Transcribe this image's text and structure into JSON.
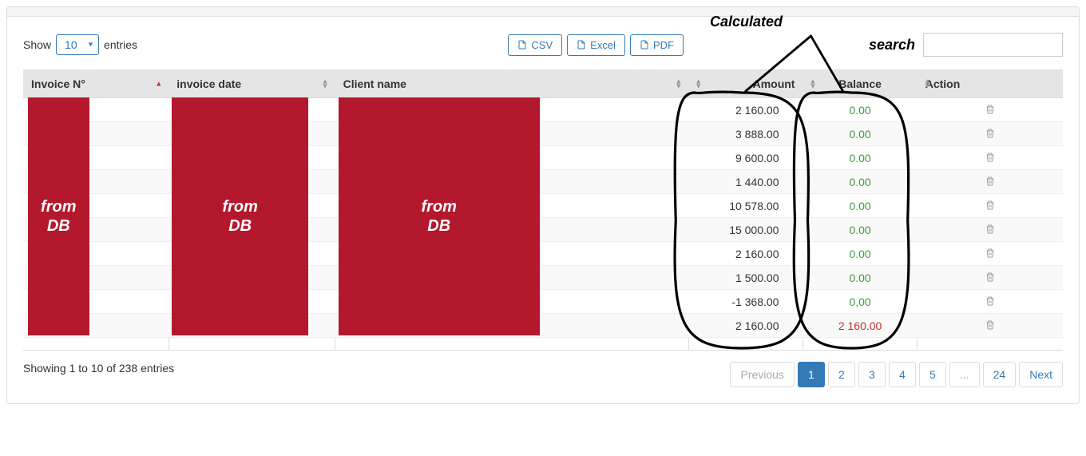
{
  "length": {
    "show_label": "Show",
    "entries_label": "entries",
    "value": "10"
  },
  "export": {
    "csv": "CSV",
    "excel": "Excel",
    "pdf": "PDF"
  },
  "search": {
    "label": "search",
    "value": ""
  },
  "columns": {
    "invoice_no": "Invoice N°",
    "invoice_date": "invoice date",
    "client_name": "Client name",
    "amount": "Amount",
    "balance": "Balance",
    "action": "Action"
  },
  "column_widths": {
    "invoice_no": "14%",
    "invoice_date": "16%",
    "client_name": "34%",
    "amount": "11%",
    "balance": "11%",
    "action": "14%"
  },
  "rows": [
    {
      "amount": "2 160.00",
      "balance": "0.00",
      "balance_color": "green"
    },
    {
      "amount": "3 888.00",
      "balance": "0.00",
      "balance_color": "green"
    },
    {
      "amount": "9 600.00",
      "balance": "0.00",
      "balance_color": "green"
    },
    {
      "amount": "1 440.00",
      "balance": "0.00",
      "balance_color": "green"
    },
    {
      "amount": "10 578.00",
      "balance": "0.00",
      "balance_color": "green"
    },
    {
      "amount": "15 000.00",
      "balance": "0.00",
      "balance_color": "green"
    },
    {
      "amount": "2 160.00",
      "balance": "0.00",
      "balance_color": "green"
    },
    {
      "amount": "1 500.00",
      "balance": "0.00",
      "balance_color": "green"
    },
    {
      "amount": "-1 368.00",
      "balance": "0,00",
      "balance_color": "green"
    },
    {
      "amount": "2 160.00",
      "balance": "2 160.00",
      "balance_color": "red"
    }
  ],
  "redaction": {
    "label_html": "from<br>DB",
    "color": "#b4182d"
  },
  "info": "Showing 1 to 10 of 238 entries",
  "pagination": {
    "previous": "Previous",
    "next": "Next",
    "pages": [
      "1",
      "2",
      "3",
      "4",
      "5",
      "...",
      "24"
    ],
    "active": "1"
  },
  "annotations": {
    "calculated_label": "Calculated"
  },
  "colors": {
    "primary": "#337ab7",
    "header_bg": "#e5e5e5",
    "green": "#3c9a3c",
    "red": "#c9302c",
    "redaction": "#b4182d",
    "border": "#ddd"
  }
}
